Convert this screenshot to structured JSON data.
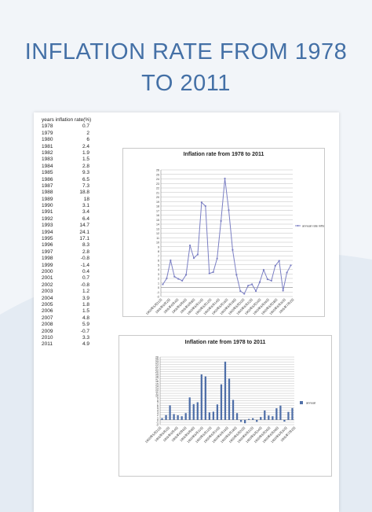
{
  "title_lines": [
    "INFLATION RATE FROM 1978",
    "TO 2011"
  ],
  "table": {
    "header": "years  inflation rate(%)",
    "rows": [
      {
        "year": "1978",
        "value": "0.7"
      },
      {
        "year": "1979",
        "value": "2"
      },
      {
        "year": "1980",
        "value": "6"
      },
      {
        "year": "1981",
        "value": "2.4"
      },
      {
        "year": "1982",
        "value": "1.9"
      },
      {
        "year": "1983",
        "value": "1.5"
      },
      {
        "year": "1984",
        "value": "2.8"
      },
      {
        "year": "1985",
        "value": "9.3"
      },
      {
        "year": "1986",
        "value": "6.5"
      },
      {
        "year": "1987",
        "value": "7.3"
      },
      {
        "year": "1988",
        "value": "18.8"
      },
      {
        "year": "1989",
        "value": "18"
      },
      {
        "year": "1990",
        "value": "3.1"
      },
      {
        "year": "1991",
        "value": "3.4"
      },
      {
        "year": "1992",
        "value": "6.4"
      },
      {
        "year": "1993",
        "value": "14.7"
      },
      {
        "year": "1994",
        "value": "24.1"
      },
      {
        "year": "1995",
        "value": "17.1"
      },
      {
        "year": "1996",
        "value": "8.3"
      },
      {
        "year": "1997",
        "value": "2.8"
      },
      {
        "year": "1998",
        "value": "-0.8"
      },
      {
        "year": "1999",
        "value": "-1.4"
      },
      {
        "year": "2000",
        "value": "0.4"
      },
      {
        "year": "2001",
        "value": "0.7"
      },
      {
        "year": "2002",
        "value": "-0.8"
      },
      {
        "year": "2003",
        "value": "1.2"
      },
      {
        "year": "2004",
        "value": "3.9"
      },
      {
        "year": "2005",
        "value": "1.8"
      },
      {
        "year": "2006",
        "value": "1.5"
      },
      {
        "year": "2007",
        "value": "4.8"
      },
      {
        "year": "2008",
        "value": "5.9"
      },
      {
        "year": "2009",
        "value": "-0.7"
      },
      {
        "year": "2010",
        "value": "3.3"
      },
      {
        "year": "2011",
        "value": "4.9"
      }
    ]
  },
  "colors": {
    "title": "#4470a6",
    "line": "#7b7fc4",
    "bar": "#4f6fa8",
    "grid": "#bfbfbf"
  },
  "chart_data": [
    {
      "type": "line",
      "title": "Inflation rate from 1978 to 2011",
      "legend": "annual rate inflation",
      "legend_position": "right",
      "grid": true,
      "ylim": [
        -2,
        26
      ],
      "x_tick_labels": [
        "1905年5月31日",
        "1905年6月2日",
        "1905年6月4日",
        "1905年6月6日",
        "1905年6月8日",
        "1905年6月10日",
        "1905年6月12日",
        "1905年6月14日",
        "1905年6月16日",
        "1905年6月18日",
        "1905年6月20日",
        "1905年6月22日",
        "1905年6月24日",
        "1905年6月26日",
        "1905年6月28日",
        "1905年6月30日",
        "1905年7月2日"
      ],
      "series": [
        {
          "name": "annual rate inflation",
          "values": [
            0.7,
            2,
            6,
            2.4,
            1.9,
            1.5,
            2.8,
            9.3,
            6.5,
            7.3,
            18.8,
            18,
            3.1,
            3.4,
            6.4,
            14.7,
            24.1,
            17.1,
            8.3,
            2.8,
            -0.8,
            -1.4,
            0.4,
            0.7,
            -0.8,
            1.2,
            3.9,
            1.8,
            1.5,
            4.8,
            5.9,
            -0.7,
            3.3,
            4.9
          ]
        }
      ]
    },
    {
      "type": "bar",
      "title": "Inflation rate from 1978 to 2011",
      "legend": "annual",
      "legend_position": "right",
      "grid": true,
      "ylim": [
        -2,
        26
      ],
      "x_tick_labels": [
        "1905年5月31日",
        "1905年6月2日",
        "1905年6月4日",
        "1905年6月6日",
        "1905年6月8日",
        "1905年6月10日",
        "1905年6月12日",
        "1905年6月14日",
        "1905年6月16日",
        "1905年6月18日",
        "1905年6月20日",
        "1905年6月22日",
        "1905年6月24日",
        "1905年6月26日",
        "1905年6月28日",
        "1905年6月30日",
        "1905年7月2日"
      ],
      "series": [
        {
          "name": "annual",
          "values": [
            0.7,
            2,
            6,
            2.4,
            1.9,
            1.5,
            2.8,
            9.3,
            6.5,
            7.3,
            18.8,
            18,
            3.1,
            3.4,
            6.4,
            14.7,
            24.1,
            17.1,
            8.3,
            2.8,
            -0.8,
            -1.4,
            0.4,
            0.7,
            -0.8,
            1.2,
            3.9,
            1.8,
            1.5,
            4.8,
            5.9,
            -0.7,
            3.3,
            4.9
          ]
        }
      ]
    }
  ]
}
